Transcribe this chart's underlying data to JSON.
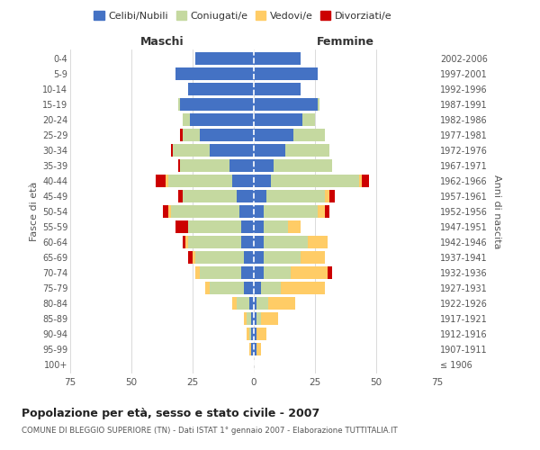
{
  "age_groups": [
    "100+",
    "95-99",
    "90-94",
    "85-89",
    "80-84",
    "75-79",
    "70-74",
    "65-69",
    "60-64",
    "55-59",
    "50-54",
    "45-49",
    "40-44",
    "35-39",
    "30-34",
    "25-29",
    "20-24",
    "15-19",
    "10-14",
    "5-9",
    "0-4"
  ],
  "birth_years": [
    "≤ 1906",
    "1907-1911",
    "1912-1916",
    "1917-1921",
    "1922-1926",
    "1927-1931",
    "1932-1936",
    "1937-1941",
    "1942-1946",
    "1947-1951",
    "1952-1956",
    "1957-1961",
    "1962-1966",
    "1967-1971",
    "1972-1976",
    "1977-1981",
    "1982-1986",
    "1987-1991",
    "1992-1996",
    "1997-2001",
    "2002-2006"
  ],
  "maschi": {
    "celibi": [
      0,
      1,
      1,
      1,
      2,
      4,
      5,
      4,
      5,
      5,
      6,
      7,
      9,
      10,
      18,
      22,
      26,
      30,
      27,
      32,
      24
    ],
    "coniugati": [
      0,
      0,
      1,
      2,
      5,
      14,
      17,
      20,
      22,
      22,
      28,
      22,
      26,
      20,
      15,
      7,
      3,
      1,
      0,
      0,
      0
    ],
    "vedovi": [
      0,
      1,
      1,
      1,
      2,
      2,
      2,
      1,
      1,
      0,
      1,
      0,
      1,
      0,
      0,
      0,
      0,
      0,
      0,
      0,
      0
    ],
    "divorziati": [
      0,
      0,
      0,
      0,
      0,
      0,
      0,
      2,
      1,
      5,
      2,
      2,
      4,
      1,
      1,
      1,
      0,
      0,
      0,
      0,
      0
    ]
  },
  "femmine": {
    "nubili": [
      0,
      1,
      1,
      1,
      1,
      3,
      4,
      4,
      4,
      4,
      4,
      5,
      7,
      8,
      13,
      16,
      20,
      26,
      19,
      26,
      19
    ],
    "coniugate": [
      0,
      0,
      0,
      2,
      5,
      8,
      11,
      15,
      18,
      10,
      22,
      24,
      36,
      24,
      18,
      13,
      5,
      1,
      0,
      0,
      0
    ],
    "vedove": [
      0,
      2,
      4,
      7,
      11,
      18,
      15,
      10,
      8,
      5,
      3,
      2,
      1,
      0,
      0,
      0,
      0,
      0,
      0,
      0,
      0
    ],
    "divorziate": [
      0,
      0,
      0,
      0,
      0,
      0,
      2,
      0,
      0,
      0,
      2,
      2,
      3,
      0,
      0,
      0,
      0,
      0,
      0,
      0,
      0
    ]
  },
  "colors": {
    "celibi": "#4472C4",
    "coniugati": "#C5D9A0",
    "vedovi": "#FFCC66",
    "divorziati": "#CC0000"
  },
  "title": "Popolazione per età, sesso e stato civile - 2007",
  "subtitle": "COMUNE DI BLEGGIO SUPERIORE (TN) - Dati ISTAT 1° gennaio 2007 - Elaborazione TUTTITALIA.IT",
  "xlabel_left": "Maschi",
  "xlabel_right": "Femmine",
  "ylabel_left": "Fasce di età",
  "ylabel_right": "Anni di nascita",
  "xlim": 75,
  "legend_labels": [
    "Celibi/Nubili",
    "Coniugati/e",
    "Vedovi/e",
    "Divorziati/e"
  ],
  "bg_color": "#FFFFFF",
  "grid_color": "#CCCCCC"
}
